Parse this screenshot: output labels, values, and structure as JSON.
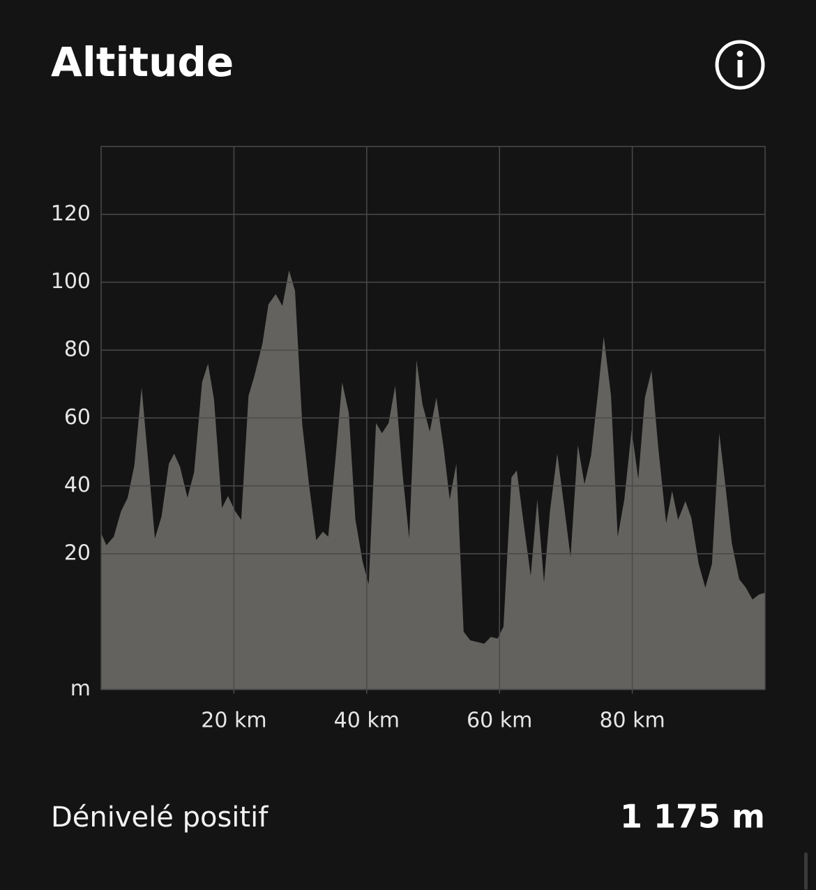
{
  "chart_data": {
    "type": "area",
    "title": "Altitude",
    "x": [
      0,
      0.8,
      1.9,
      3,
      4,
      5,
      6.1,
      7.1,
      8.1,
      9.1,
      10.2,
      11,
      11.9,
      13,
      14,
      15.2,
      16.1,
      17,
      18.2,
      19.1,
      20.2,
      21.1,
      22.2,
      23.1,
      24.3,
      25.2,
      26.3,
      27.3,
      28.3,
      29.2,
      30.3,
      31.3,
      32.4,
      33.4,
      34.2,
      35.3,
      36.3,
      37.3,
      38.3,
      39.4,
      40.3,
      41.4,
      42.3,
      43.3,
      44.3,
      45.4,
      46.4,
      47.5,
      48.4,
      49.5,
      50.5,
      51.6,
      52.5,
      53.5,
      54.6,
      55.6,
      56.6,
      57.7,
      58.7,
      59.7,
      60.6,
      61.8,
      62.6,
      63.6,
      64.7,
      65.7,
      66.7,
      67.6,
      68.7,
      69.7,
      70.7,
      71.8,
      72.8,
      73.8,
      74.8,
      75.7,
      76.8,
      77.8,
      78.8,
      79.9,
      80.9,
      81.9,
      82.9,
      83.9,
      85.1,
      86,
      86.9,
      88,
      88.9,
      90,
      91,
      92,
      93.1,
      94,
      95,
      96.1,
      97.1,
      98.1,
      99.1,
      100
    ],
    "values": [
      26,
      22.5,
      25,
      32.5,
      36.5,
      46,
      69,
      47,
      24.5,
      31,
      46.5,
      49.5,
      45.5,
      36.5,
      44,
      70.5,
      76,
      65.5,
      33.5,
      37,
      32.5,
      30,
      66.5,
      72.5,
      82,
      93.5,
      96.5,
      93,
      103.5,
      97.5,
      58,
      40.5,
      24,
      26.5,
      25,
      48,
      70.5,
      61.5,
      30,
      17.5,
      11,
      58.5,
      55.5,
      58.5,
      69.5,
      43.5,
      24.5,
      77,
      64,
      56,
      66,
      51,
      36,
      46.5,
      -3,
      -5.5,
      -6,
      -6.5,
      -4.5,
      -5,
      -1.5,
      42.5,
      44.5,
      29.5,
      13.5,
      36,
      11.5,
      32.5,
      49.5,
      34.5,
      19,
      52,
      40.5,
      49,
      67,
      84,
      66.5,
      25,
      36,
      56.5,
      42,
      66,
      74,
      51.5,
      29,
      38.5,
      30,
      35.5,
      30.5,
      17,
      10,
      17,
      55.5,
      40.5,
      23,
      12.5,
      10,
      6.5,
      8,
      8.5
    ],
    "color": "#63625f",
    "xlim": [
      0,
      100
    ],
    "xticks": [
      {
        "value": 20,
        "label": "20 km"
      },
      {
        "value": 40,
        "label": "40 km"
      },
      {
        "value": 60,
        "label": "60 km"
      },
      {
        "value": 80,
        "label": "80 km"
      }
    ],
    "ylim": [
      -20,
      140
    ],
    "yticks": [
      {
        "value": -20,
        "label": "m"
      },
      20,
      40,
      60,
      80,
      100,
      120
    ],
    "grid": true
  },
  "stats": {
    "label": "Dénivelé positif",
    "value": "1 175 m"
  }
}
